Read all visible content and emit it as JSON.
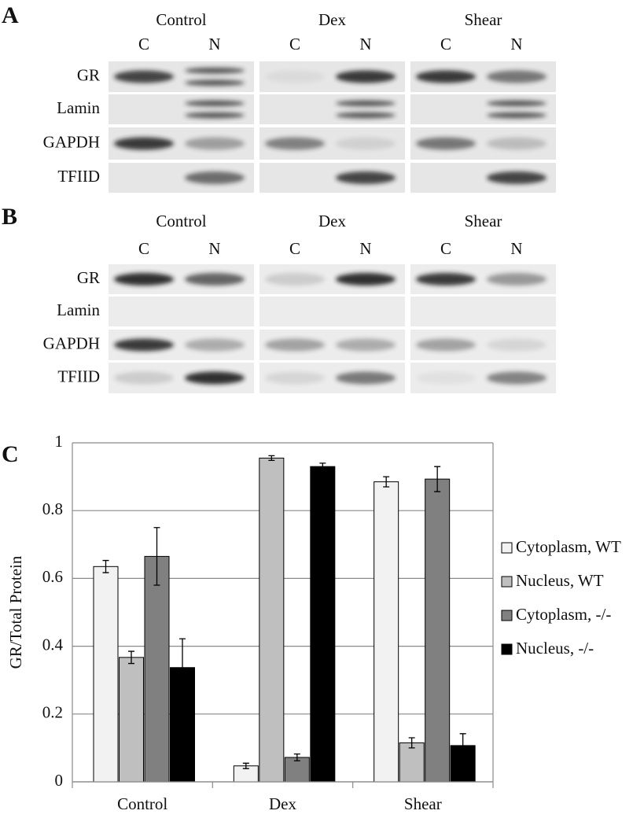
{
  "panel_a": {
    "label": "A",
    "groups": [
      "Control",
      "Dex",
      "Shear"
    ],
    "lanes": [
      "C",
      "N",
      "C",
      "N",
      "C",
      "N"
    ],
    "rows": [
      "GR",
      "Lamin",
      "GAPDH",
      "TFIID"
    ]
  },
  "panel_b": {
    "label": "B",
    "groups": [
      "Control",
      "Dex",
      "Shear"
    ],
    "lanes": [
      "C",
      "N",
      "C",
      "N",
      "C",
      "N"
    ],
    "rows": [
      "GR",
      "Lamin",
      "GAPDH",
      "TFIID"
    ]
  },
  "chart_data": {
    "type": "bar",
    "label": "C",
    "ylabel": "GR/Total Protein",
    "categories": [
      "Control",
      "Dex",
      "Shear"
    ],
    "series": [
      {
        "name": "Cytoplasm, WT",
        "color": "#f2f2f2",
        "values": [
          0.635,
          0.047,
          0.885
        ],
        "errors": [
          0.018,
          0.008,
          0.015
        ]
      },
      {
        "name": "Nucleus, WT",
        "color": "#bfbfbf",
        "values": [
          0.367,
          0.955,
          0.115
        ],
        "errors": [
          0.018,
          0.007,
          0.015
        ]
      },
      {
        "name": "Cytoplasm, -/-",
        "color": "#808080",
        "values": [
          0.665,
          0.072,
          0.893
        ],
        "errors": [
          0.085,
          0.01,
          0.037
        ]
      },
      {
        "name": "Nucleus, -/-",
        "color": "#000000",
        "values": [
          0.337,
          0.93,
          0.107
        ],
        "errors": [
          0.085,
          0.01,
          0.035
        ]
      }
    ],
    "ylim": [
      0,
      1
    ],
    "yticks": [
      0,
      0.2,
      0.4,
      0.6,
      0.8,
      1
    ],
    "grid": true,
    "legend": "right"
  }
}
